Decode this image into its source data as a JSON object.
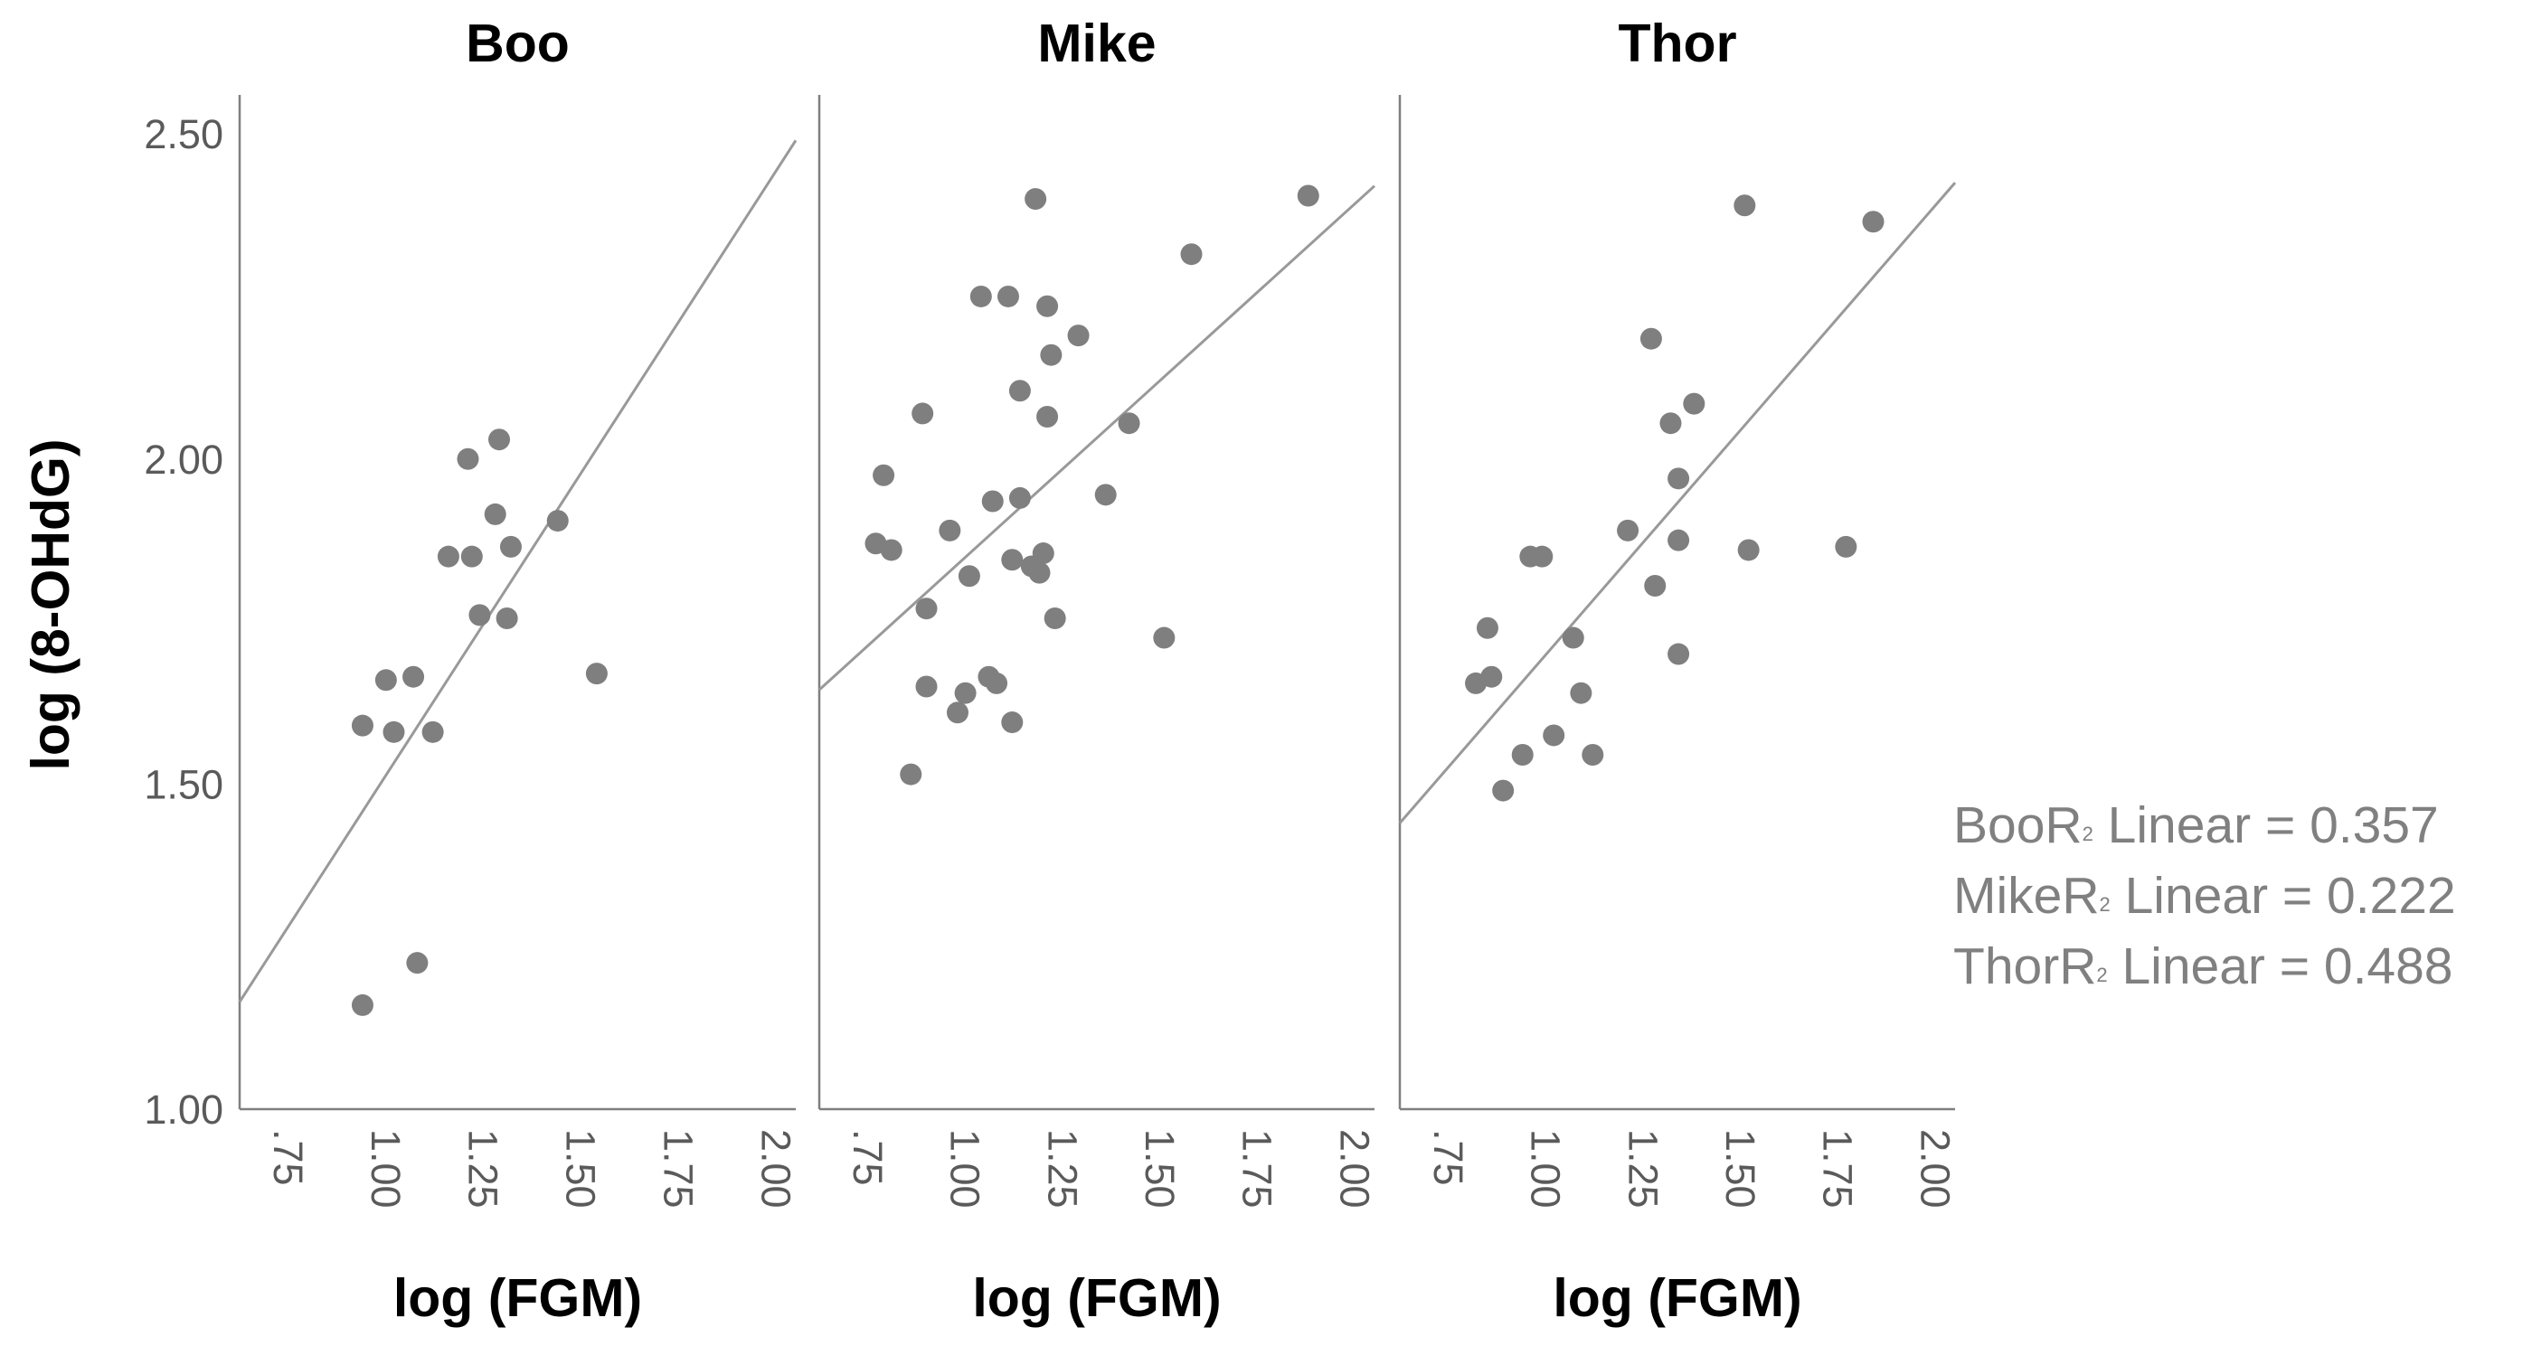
{
  "chart_data": {
    "type": "scatter",
    "ylabel": "log (8-OHdG)",
    "xlabel": "log (FGM)",
    "ylim": [
      1.0,
      2.56
    ],
    "xlim": [
      0.625,
      2.05
    ],
    "yticks": [
      "1.00",
      "1.50",
      "2.00",
      "2.50"
    ],
    "xticks": [
      ".75",
      "1.00",
      "1.25",
      "1.50",
      "1.75",
      "2.00"
    ],
    "grid": false,
    "legend_position": "right",
    "colors": {
      "points": "#7f7f7f",
      "fit_line": "#999999",
      "axis": "#7f7f7f"
    },
    "panels": [
      {
        "name": "Boo",
        "fit": {
          "x0": 0.625,
          "y0": 1.165,
          "x1": 2.05,
          "y1": 2.49
        },
        "points": [
          [
            0.94,
            1.59
          ],
          [
            0.94,
            1.16
          ],
          [
            1.0,
            1.66
          ],
          [
            1.02,
            1.58
          ],
          [
            1.07,
            1.665
          ],
          [
            1.08,
            1.225
          ],
          [
            1.12,
            1.58
          ],
          [
            1.16,
            1.85
          ],
          [
            1.21,
            2.0
          ],
          [
            1.22,
            1.85
          ],
          [
            1.24,
            1.76
          ],
          [
            1.28,
            1.915
          ],
          [
            1.29,
            2.03
          ],
          [
            1.31,
            1.755
          ],
          [
            1.32,
            1.865
          ],
          [
            1.44,
            1.905
          ],
          [
            1.54,
            1.67
          ]
        ]
      },
      {
        "name": "Mike",
        "fit": {
          "x0": 0.625,
          "y0": 1.645,
          "x1": 2.05,
          "y1": 2.42
        },
        "points": [
          [
            0.77,
            1.87
          ],
          [
            0.79,
            1.975
          ],
          [
            0.81,
            1.86
          ],
          [
            0.86,
            1.515
          ],
          [
            0.89,
            2.07
          ],
          [
            0.9,
            1.65
          ],
          [
            0.9,
            1.77
          ],
          [
            0.96,
            1.89
          ],
          [
            0.98,
            1.61
          ],
          [
            1.0,
            1.64
          ],
          [
            1.01,
            1.82
          ],
          [
            1.04,
            2.25
          ],
          [
            1.06,
            1.665
          ],
          [
            1.07,
            1.935
          ],
          [
            1.08,
            1.655
          ],
          [
            1.11,
            2.25
          ],
          [
            1.12,
            1.845
          ],
          [
            1.12,
            1.595
          ],
          [
            1.14,
            1.94
          ],
          [
            1.14,
            2.105
          ],
          [
            1.17,
            1.835
          ],
          [
            1.18,
            2.4
          ],
          [
            1.19,
            1.825
          ],
          [
            1.2,
            1.855
          ],
          [
            1.21,
            2.235
          ],
          [
            1.21,
            2.065
          ],
          [
            1.22,
            2.16
          ],
          [
            1.23,
            1.755
          ],
          [
            1.29,
            2.19
          ],
          [
            1.36,
            1.945
          ],
          [
            1.42,
            2.055
          ],
          [
            1.51,
            1.725
          ],
          [
            1.58,
            2.315
          ],
          [
            1.88,
            2.405
          ]
        ]
      },
      {
        "name": "Thor",
        "fit": {
          "x0": 0.625,
          "y0": 1.44,
          "x1": 2.05,
          "y1": 2.425
        },
        "points": [
          [
            0.82,
            1.655
          ],
          [
            0.85,
            1.74
          ],
          [
            0.86,
            1.665
          ],
          [
            0.89,
            1.49
          ],
          [
            0.94,
            1.545
          ],
          [
            0.96,
            1.85
          ],
          [
            0.99,
            1.85
          ],
          [
            1.02,
            1.575
          ],
          [
            1.07,
            1.725
          ],
          [
            1.09,
            1.64
          ],
          [
            1.12,
            1.545
          ],
          [
            1.21,
            1.89
          ],
          [
            1.27,
            2.185
          ],
          [
            1.28,
            1.805
          ],
          [
            1.32,
            2.055
          ],
          [
            1.34,
            1.875
          ],
          [
            1.34,
            1.97
          ],
          [
            1.34,
            1.7
          ],
          [
            1.38,
            2.085
          ],
          [
            1.51,
            2.39
          ],
          [
            1.52,
            1.86
          ],
          [
            1.77,
            1.865
          ],
          [
            1.84,
            2.365
          ]
        ]
      }
    ],
    "legend": [
      {
        "series": "Boo",
        "r2": "0.357"
      },
      {
        "series": "Mike",
        "r2": "0.222"
      },
      {
        "series": "Thor",
        "r2": "0.488"
      }
    ],
    "legend_sup": "2",
    "legend_fit_label": " Linear = "
  }
}
